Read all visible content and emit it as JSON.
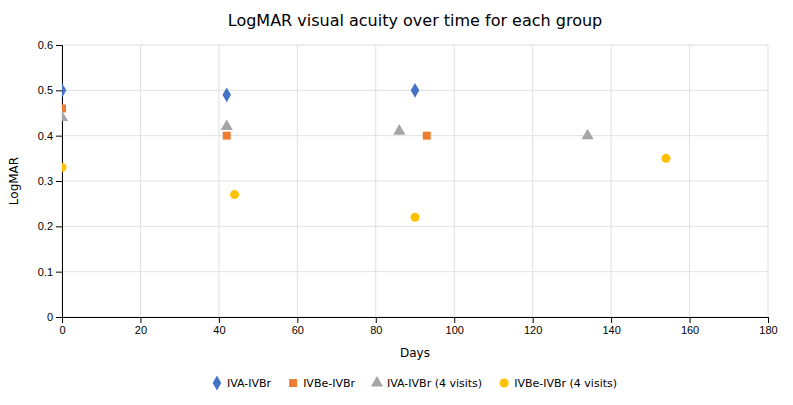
{
  "chart_data": {
    "type": "scatter",
    "title": "LogMAR visual acuity over time for each group",
    "xlabel": "Days",
    "ylabel": "LogMAR",
    "xlim": [
      0,
      180
    ],
    "ylim": [
      0,
      0.6
    ],
    "xticks": [
      0,
      20,
      40,
      60,
      80,
      100,
      120,
      140,
      160,
      180
    ],
    "yticks": [
      0,
      0.1,
      0.2,
      0.3,
      0.4,
      0.5,
      0.6
    ],
    "grid": true,
    "legend": "bottom",
    "series": [
      {
        "name": "IVA-IVBr",
        "color": "#4472C4",
        "marker": "diamond",
        "x": [
          0,
          42,
          90
        ],
        "values": [
          0.5,
          0.49,
          0.5
        ]
      },
      {
        "name": "IVBe-IVBr",
        "color": "#ED7D31",
        "marker": "square",
        "x": [
          0,
          42,
          93
        ],
        "values": [
          0.46,
          0.4,
          0.4
        ]
      },
      {
        "name": "IVA-IVBr (4 visits)",
        "color": "#A5A5A5",
        "marker": "triangle",
        "x": [
          0,
          42,
          86,
          134
        ],
        "values": [
          0.44,
          0.42,
          0.41,
          0.4
        ]
      },
      {
        "name": "IVBe-IVBr (4 visits)",
        "color": "#FFC000",
        "marker": "circle",
        "x": [
          0,
          44,
          90,
          154
        ],
        "values": [
          0.33,
          0.27,
          0.22,
          0.35
        ]
      }
    ]
  }
}
